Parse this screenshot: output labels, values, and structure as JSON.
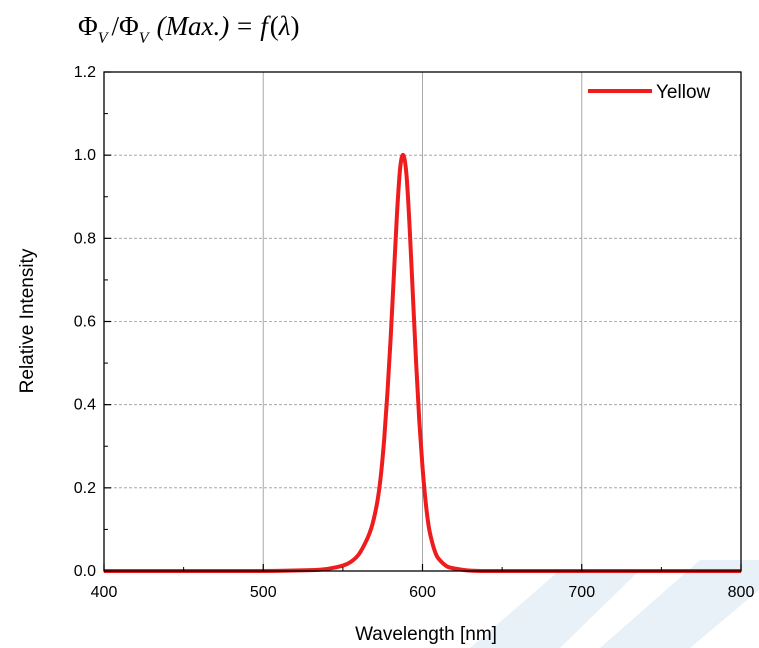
{
  "formula": {
    "phi": "Φ",
    "sub": "V",
    "slash": "/",
    "max": "(Max.)",
    "eq": "= f",
    "lambda": "λ"
  },
  "watermark": {
    "color": "#d6e6f3"
  },
  "chart_data": {
    "type": "line",
    "xlabel": "Wavelength [nm]",
    "ylabel": "Relative Intensity",
    "xlim": [
      400,
      800
    ],
    "ylim": [
      0,
      1.2
    ],
    "xticks": [
      400,
      500,
      600,
      700,
      800
    ],
    "xtick_labels": [
      "400",
      "500",
      "600",
      "700",
      "800"
    ],
    "yticks": [
      0.0,
      0.2,
      0.4,
      0.6,
      0.8,
      1.0,
      1.2
    ],
    "ytick_labels": [
      "0.0",
      "0.2",
      "0.4",
      "0.6",
      "0.8",
      "1.0",
      "1.2"
    ],
    "grid": {
      "x": "solid",
      "y": "dashed"
    },
    "legend_position": "top-right",
    "series": [
      {
        "name": "Yellow",
        "color": "#ee1c1c",
        "x": [
          400,
          450,
          500,
          530,
          540,
          550,
          555,
          560,
          565,
          568,
          570,
          572,
          574,
          576,
          578,
          580,
          582,
          584,
          586,
          588,
          590,
          592,
          594,
          596,
          598,
          600,
          602,
          604,
          606,
          608,
          610,
          615,
          620,
          625,
          630,
          640,
          650,
          700,
          750,
          800
        ],
        "y": [
          0,
          0,
          0,
          0.002,
          0.005,
          0.013,
          0.022,
          0.04,
          0.075,
          0.105,
          0.135,
          0.175,
          0.235,
          0.32,
          0.43,
          0.56,
          0.71,
          0.86,
          0.97,
          1.0,
          0.95,
          0.82,
          0.66,
          0.5,
          0.36,
          0.25,
          0.165,
          0.105,
          0.07,
          0.045,
          0.03,
          0.012,
          0.006,
          0.003,
          0.001,
          0,
          0,
          0,
          0,
          0
        ]
      }
    ]
  }
}
